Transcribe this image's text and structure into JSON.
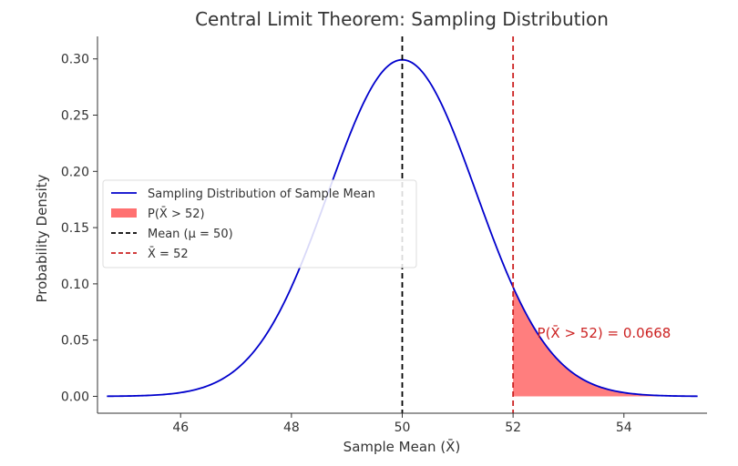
{
  "chart_data": {
    "type": "line",
    "title": "Central Limit Theorem: Sampling Distribution",
    "xlabel": "Sample Mean (X̄)",
    "ylabel": "Probability Density",
    "xlim": [
      44.5,
      55.5
    ],
    "ylim": [
      -0.015,
      0.32
    ],
    "xticks": [
      46,
      48,
      50,
      52,
      54
    ],
    "xtick_labels": [
      "46",
      "48",
      "50",
      "52",
      "54"
    ],
    "yticks": [
      0.0,
      0.05,
      0.1,
      0.15,
      0.2,
      0.25,
      0.3
    ],
    "ytick_labels": [
      "0.00",
      "0.05",
      "0.10",
      "0.15",
      "0.20",
      "0.25",
      "0.30"
    ],
    "grid": false,
    "legend_position": "center-left",
    "distribution": {
      "mean": 50,
      "std": 1.3333,
      "x_range": [
        44.67,
        55.33
      ]
    },
    "series": [
      {
        "name": "Sampling Distribution of Sample Mean",
        "kind": "line",
        "color": "#0000cc",
        "x": [
          44.67,
          45.5,
          46.0,
          46.5,
          47.0,
          47.5,
          48.0,
          48.5,
          49.0,
          49.5,
          50.0,
          50.5,
          51.0,
          51.5,
          52.0,
          52.5,
          53.0,
          53.5,
          54.0,
          54.5,
          55.33
        ],
        "y": [
          0.0001,
          0.0012,
          0.0033,
          0.0095,
          0.0238,
          0.0522,
          0.0976,
          0.1593,
          0.2259,
          0.2795,
          0.2992,
          0.2795,
          0.2259,
          0.1593,
          0.0976,
          0.0522,
          0.0238,
          0.0095,
          0.0033,
          0.0012,
          0.0001
        ]
      },
      {
        "name": "P(X̄ > 52)",
        "kind": "area",
        "color": "#ff6b6b",
        "x_from": 52,
        "x_to": 55.33
      },
      {
        "name": "Mean (μ = 50)",
        "kind": "vline",
        "color": "#000000",
        "x": 50
      },
      {
        "name": "X̄ = 52",
        "kind": "vline",
        "color": "#cc2222",
        "x": 52
      }
    ],
    "annotations": [
      {
        "text": "P(X̄ > 52) = 0.0668",
        "x": 52.5,
        "y": 0.052,
        "color": "#cc2222"
      }
    ]
  }
}
